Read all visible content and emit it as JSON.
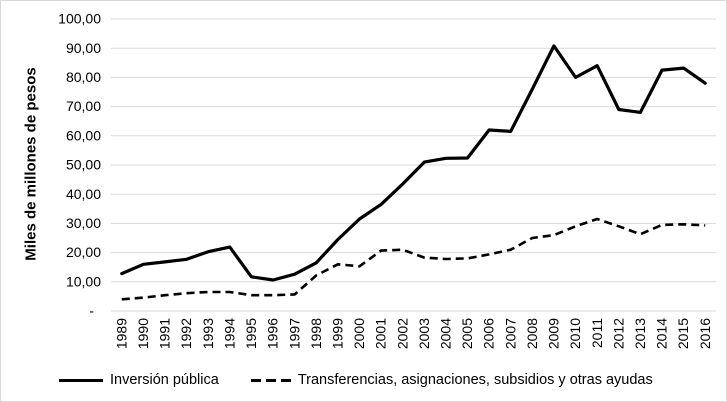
{
  "colors": {
    "grid": "#d9d9d9",
    "axis": "#d9d9d9",
    "text": "#000000",
    "border": "#d9d9d9",
    "background": "#ffffff",
    "series": "#000000"
  },
  "chart_data": {
    "type": "line",
    "title": "",
    "xlabel": "",
    "ylabel": "Miles de millones de pesos",
    "ylim": [
      0,
      100
    ],
    "grid": "horizontal",
    "legend_position": "bottom",
    "categories": [
      "1989",
      "1990",
      "1991",
      "1992",
      "1993",
      "1994",
      "1995",
      "1996",
      "1997",
      "1998",
      "1999",
      "2000",
      "2001",
      "2002",
      "2003",
      "2004",
      "2005",
      "2006",
      "2007",
      "2008",
      "2009",
      "2010",
      "2011",
      "2012",
      "2013",
      "2014",
      "2015",
      "2016"
    ],
    "y_ticks": [
      {
        "v": 100,
        "label": "100,00"
      },
      {
        "v": 90,
        "label": "90,00"
      },
      {
        "v": 80,
        "label": "80,00"
      },
      {
        "v": 70,
        "label": "70,00"
      },
      {
        "v": 60,
        "label": "60,00"
      },
      {
        "v": 50,
        "label": "50,00"
      },
      {
        "v": 40,
        "label": "40,00"
      },
      {
        "v": 30,
        "label": "30,00"
      },
      {
        "v": 20,
        "label": "20,00"
      },
      {
        "v": 10,
        "label": "10,00"
      },
      {
        "v": 0,
        "label": "-"
      }
    ],
    "series": [
      {
        "id": "inversion-publica",
        "name": "Inversión pública",
        "style": "solid",
        "color": "#000000",
        "values": [
          12.8,
          16.0,
          16.8,
          17.7,
          20.3,
          21.9,
          11.7,
          10.6,
          12.6,
          16.5,
          24.5,
          31.5,
          36.5,
          43.5,
          51.0,
          52.3,
          52.4,
          62.0,
          61.5,
          76.0,
          90.8,
          80.0,
          84.0,
          69.0,
          68.0,
          82.5,
          83.2,
          78.0
        ]
      },
      {
        "id": "transferencias",
        "name": "Transferencias, asignaciones, subsidios y otras ayudas",
        "style": "dashed",
        "color": "#000000",
        "values": [
          4.0,
          4.6,
          5.4,
          6.1,
          6.5,
          6.5,
          5.4,
          5.4,
          5.7,
          12.2,
          16.0,
          15.3,
          20.7,
          21.0,
          18.3,
          17.8,
          18.0,
          19.4,
          21.0,
          25.0,
          26.0,
          29.0,
          31.5,
          29.0,
          26.3,
          29.5,
          29.7,
          29.3
        ]
      }
    ]
  }
}
